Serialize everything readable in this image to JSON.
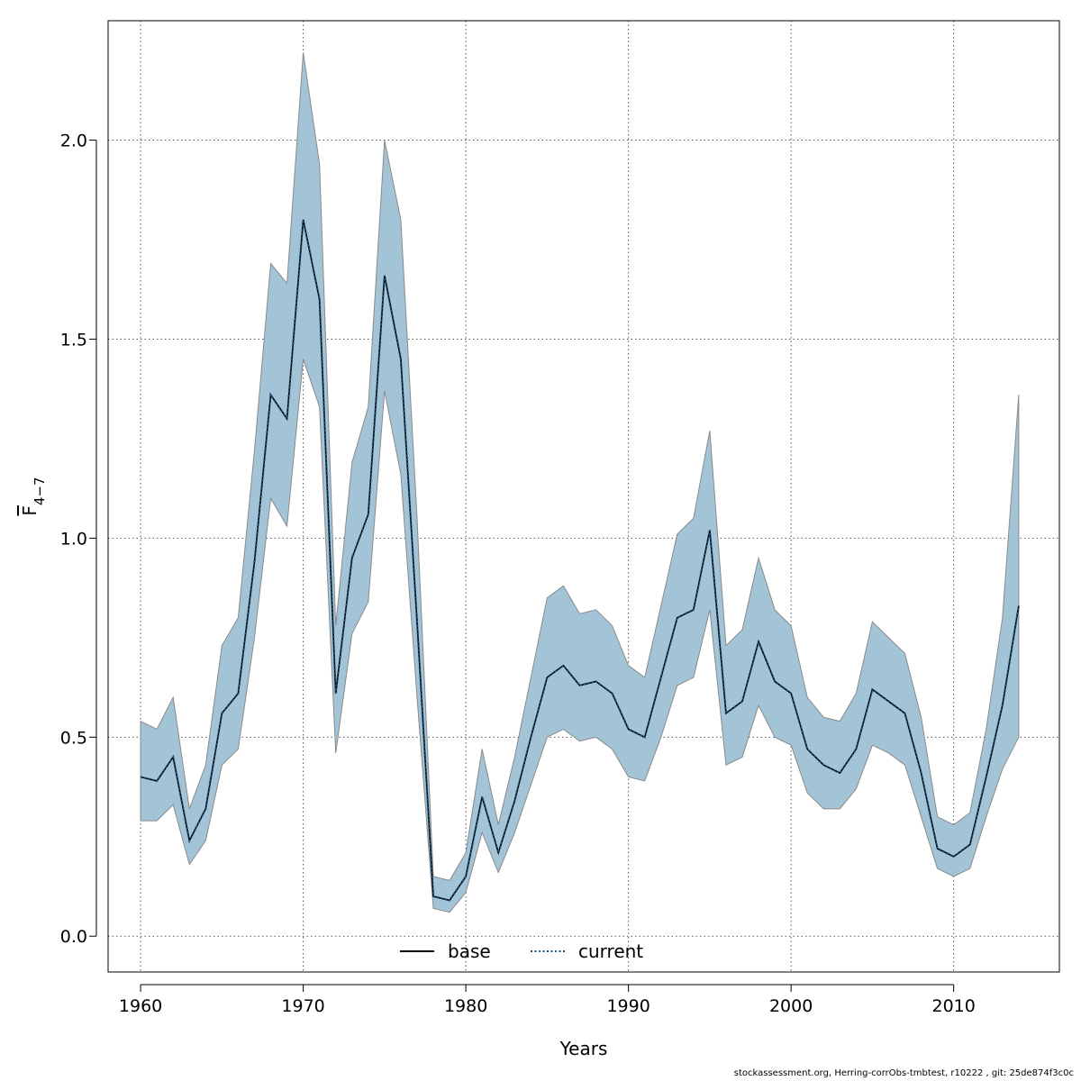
{
  "chart_data": {
    "type": "line",
    "xlabel": "Years",
    "ylabel_main": "F",
    "ylabel_sub": "4−7",
    "xlim": [
      1958,
      2016.5
    ],
    "ylim": [
      -0.09,
      2.3
    ],
    "xticks": [
      1960,
      1970,
      1980,
      1990,
      2000,
      2010
    ],
    "yticks": [
      0.0,
      0.5,
      1.0,
      1.5,
      2.0
    ],
    "ytick_labels": [
      "0.0",
      "0.5",
      "1.0",
      "1.5",
      "2.0"
    ],
    "grid": true,
    "legend_placement": "bottom-center",
    "x": [
      1960,
      1961,
      1962,
      1963,
      1964,
      1965,
      1966,
      1967,
      1968,
      1969,
      1970,
      1971,
      1972,
      1973,
      1974,
      1975,
      1976,
      1977,
      1978,
      1979,
      1980,
      1981,
      1982,
      1983,
      1984,
      1985,
      1986,
      1987,
      1988,
      1989,
      1990,
      1991,
      1992,
      1993,
      1994,
      1995,
      1996,
      1997,
      1998,
      1999,
      2000,
      2001,
      2002,
      2003,
      2004,
      2005,
      2006,
      2007,
      2008,
      2009,
      2010,
      2011,
      2012,
      2013,
      2014
    ],
    "band": {
      "lower": [
        0.29,
        0.29,
        0.33,
        0.18,
        0.24,
        0.43,
        0.47,
        0.75,
        1.1,
        1.03,
        1.45,
        1.33,
        0.46,
        0.76,
        0.84,
        1.37,
        1.16,
        0.6,
        0.07,
        0.06,
        0.11,
        0.26,
        0.16,
        0.26,
        0.38,
        0.5,
        0.52,
        0.49,
        0.5,
        0.47,
        0.4,
        0.39,
        0.5,
        0.63,
        0.65,
        0.82,
        0.43,
        0.45,
        0.58,
        0.5,
        0.48,
        0.36,
        0.32,
        0.32,
        0.37,
        0.48,
        0.46,
        0.43,
        0.3,
        0.17,
        0.15,
        0.17,
        0.3,
        0.42,
        0.5
      ],
      "upper": [
        0.54,
        0.52,
        0.6,
        0.32,
        0.43,
        0.73,
        0.8,
        1.22,
        1.69,
        1.64,
        2.22,
        1.94,
        0.78,
        1.19,
        1.33,
        2.0,
        1.8,
        1.05,
        0.15,
        0.14,
        0.21,
        0.47,
        0.28,
        0.45,
        0.65,
        0.85,
        0.88,
        0.81,
        0.82,
        0.78,
        0.68,
        0.65,
        0.83,
        1.01,
        1.05,
        1.27,
        0.73,
        0.77,
        0.95,
        0.82,
        0.78,
        0.6,
        0.55,
        0.54,
        0.61,
        0.79,
        0.75,
        0.71,
        0.55,
        0.3,
        0.28,
        0.31,
        0.52,
        0.8,
        1.36
      ]
    },
    "series": [
      {
        "name": "base",
        "style": "solid",
        "color": "#000000",
        "values": [
          0.4,
          0.39,
          0.45,
          0.24,
          0.32,
          0.56,
          0.61,
          0.94,
          1.36,
          1.3,
          1.8,
          1.6,
          0.61,
          0.95,
          1.06,
          1.66,
          1.45,
          0.79,
          0.1,
          0.09,
          0.15,
          0.35,
          0.21,
          0.34,
          0.5,
          0.65,
          0.68,
          0.63,
          0.64,
          0.61,
          0.52,
          0.5,
          0.65,
          0.8,
          0.82,
          1.02,
          0.56,
          0.59,
          0.74,
          0.64,
          0.61,
          0.47,
          0.43,
          0.41,
          0.47,
          0.62,
          0.59,
          0.56,
          0.41,
          0.22,
          0.2,
          0.23,
          0.4,
          0.58,
          0.83
        ]
      },
      {
        "name": "current",
        "style": "dotted",
        "color": "#1f4e79",
        "values": [
          0.4,
          0.39,
          0.45,
          0.24,
          0.32,
          0.56,
          0.61,
          0.94,
          1.36,
          1.3,
          1.8,
          1.6,
          0.61,
          0.95,
          1.06,
          1.66,
          1.45,
          0.79,
          0.1,
          0.09,
          0.15,
          0.35,
          0.21,
          0.34,
          0.5,
          0.65,
          0.68,
          0.63,
          0.64,
          0.61,
          0.52,
          0.5,
          0.65,
          0.8,
          0.82,
          1.02,
          0.56,
          0.59,
          0.74,
          0.64,
          0.61,
          0.47,
          0.43,
          0.41,
          0.47,
          0.62,
          0.59,
          0.56,
          0.41,
          0.22,
          0.2,
          0.23,
          0.4,
          0.58,
          0.83
        ]
      }
    ],
    "colors": {
      "band_fill": "#a3c4d6",
      "band_stroke": "#8a8a8a",
      "grid": "#555555",
      "frame": "#000000"
    }
  },
  "footer": {
    "text": "stockassessment.org, Herring-corrObs-tmbtest, r10222 , git: 25de874f3c0c"
  }
}
